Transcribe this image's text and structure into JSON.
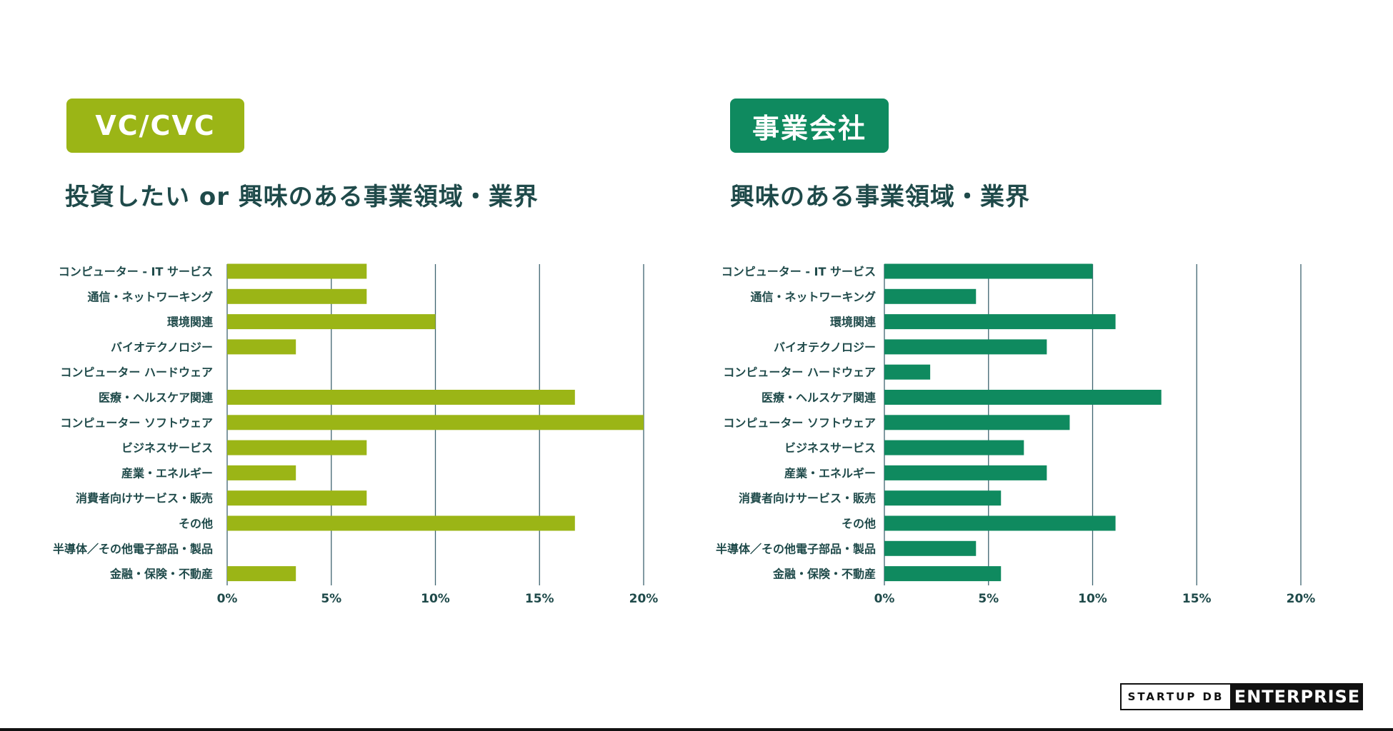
{
  "left_panel": {
    "badge": "VC/CVC",
    "heading": "投資したい or 興味のある事業領域・業界"
  },
  "right_panel": {
    "badge": "事業会社",
    "heading": "興味のある事業領域・業界"
  },
  "footer": {
    "startup": "STARTUP DB",
    "enterprise": "ENTERPRISE"
  },
  "chart_data": [
    {
      "type": "bar",
      "orientation": "horizontal",
      "categories": [
        "コンピューター - IT サービス",
        "通信・ネットワーキング",
        "環境関連",
        "バイオテクノロジー",
        "コンピューター ハードウェア",
        "医療・ヘルスケア関連",
        "コンピューター ソフトウェア",
        "ビジネスサービス",
        "産業・エネルギー",
        "消費者向けサービス・販売",
        "その他",
        "半導体／その他電子部品・製品",
        "金融・保険・不動産"
      ],
      "values": [
        6.7,
        6.7,
        10.0,
        3.3,
        0,
        16.7,
        20.0,
        6.7,
        3.3,
        6.7,
        16.7,
        0,
        3.3
      ],
      "xlim": [
        0,
        20
      ],
      "xticks": [
        "0%",
        "5%",
        "10%",
        "15%",
        "20%"
      ],
      "color": "#9bb516",
      "grid": true
    },
    {
      "type": "bar",
      "orientation": "horizontal",
      "categories": [
        "コンピューター - IT サービス",
        "通信・ネットワーキング",
        "環境関連",
        "バイオテクノロジー",
        "コンピューター ハードウェア",
        "医療・ヘルスケア関連",
        "コンピューター ソフトウェア",
        "ビジネスサービス",
        "産業・エネルギー",
        "消費者向けサービス・販売",
        "その他",
        "半導体／その他電子部品・製品",
        "金融・保険・不動産"
      ],
      "values": [
        10.0,
        4.4,
        11.1,
        7.8,
        2.2,
        13.3,
        8.9,
        6.7,
        7.8,
        5.6,
        11.1,
        4.4,
        5.6
      ],
      "xlim": [
        0,
        20
      ],
      "xticks": [
        "0%",
        "5%",
        "10%",
        "15%",
        "20%"
      ],
      "color": "#0f8a5f",
      "grid": true
    }
  ]
}
